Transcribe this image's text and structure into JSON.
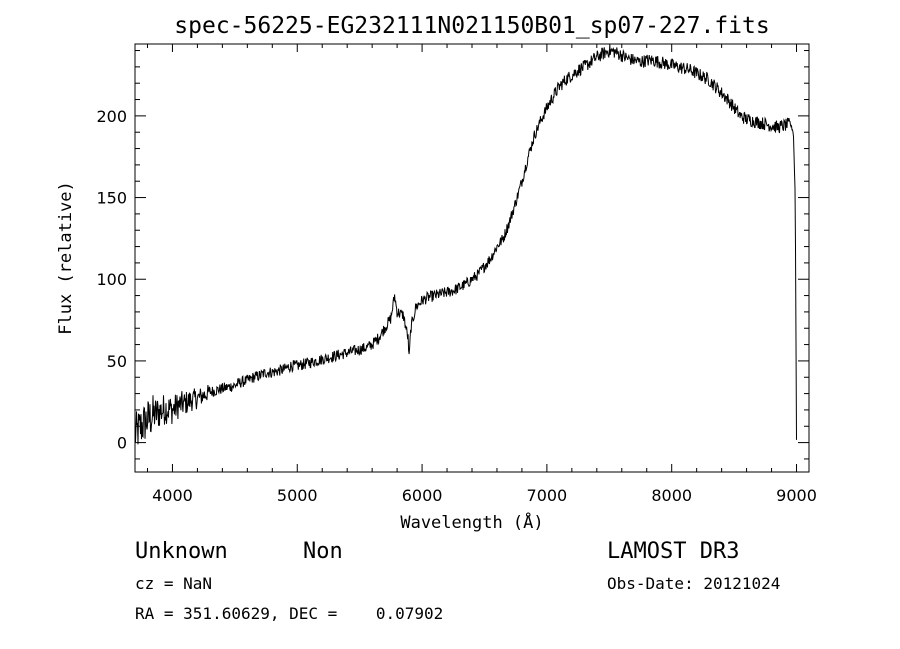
{
  "chart_data": {
    "type": "line",
    "title": "spec-56225-EG232111N021150B01_sp07-227.fits",
    "xlabel": "Wavelength (Å)",
    "ylabel": "Flux (relative)",
    "xlim": [
      3700,
      9100
    ],
    "ylim": [
      -18,
      244
    ],
    "x_ticks": [
      "4000",
      "5000",
      "6000",
      "7000",
      "8000",
      "9000"
    ],
    "x_tick_values": [
      4000,
      5000,
      6000,
      7000,
      8000,
      9000
    ],
    "y_ticks": [
      "0",
      "50",
      "100",
      "150",
      "200"
    ],
    "y_tick_values": [
      0,
      50,
      100,
      150,
      200
    ],
    "grid": false,
    "line_color": "#000000",
    "series": [
      {
        "x": [
          3700,
          3750,
          3800,
          3850,
          3900,
          3950,
          4000,
          4050,
          4100,
          4150,
          4200,
          4250,
          4300,
          4350,
          4400,
          4450,
          4500,
          4550,
          4600,
          4650,
          4700,
          4750,
          4800,
          4850,
          4900,
          4950,
          5000,
          5050,
          5100,
          5150,
          5200,
          5250,
          5300,
          5350,
          5400,
          5450,
          5500,
          5550,
          5600,
          5650,
          5700,
          5750,
          5780,
          5800,
          5850,
          5890,
          5895,
          5910,
          5950,
          6000,
          6050,
          6100,
          6150,
          6200,
          6250,
          6300,
          6350,
          6400,
          6450,
          6500,
          6550,
          6600,
          6650,
          6700,
          6750,
          6800,
          6850,
          6900,
          6950,
          7000,
          7050,
          7100,
          7150,
          7200,
          7250,
          7300,
          7350,
          7400,
          7450,
          7500,
          7550,
          7600,
          7650,
          7700,
          7750,
          7800,
          7850,
          7900,
          7950,
          8000,
          8050,
          8100,
          8150,
          8200,
          8250,
          8300,
          8350,
          8400,
          8450,
          8500,
          8550,
          8600,
          8650,
          8700,
          8750,
          8800,
          8850,
          8900,
          8950,
          8975,
          8990,
          9000
        ],
        "y": [
          5,
          10,
          14,
          17,
          19,
          21,
          20,
          23,
          24,
          26,
          27,
          29,
          31,
          32,
          33,
          34,
          35,
          37,
          38,
          40,
          41,
          43,
          43,
          44,
          45,
          47,
          47,
          48,
          49,
          50,
          51,
          52,
          53,
          54,
          55,
          56,
          57,
          58,
          60,
          64,
          70,
          76,
          90,
          80,
          78,
          63,
          50,
          70,
          83,
          87,
          89,
          90,
          91,
          92,
          93,
          95,
          97,
          100,
          103,
          108,
          113,
          120,
          125,
          135,
          147,
          160,
          175,
          188,
          197,
          205,
          212,
          218,
          222,
          225,
          228,
          230,
          233,
          236,
          238,
          240,
          239,
          237,
          235,
          234,
          233,
          234,
          234,
          233,
          232,
          231,
          230,
          229,
          228,
          226,
          224,
          222,
          218,
          214,
          210,
          205,
          200,
          198,
          197,
          196,
          195,
          194,
          193,
          194,
          195,
          190,
          150,
          2
        ]
      }
    ]
  },
  "info": {
    "object_class": "Unknown",
    "object_subclass": "Non",
    "survey": "LAMOST DR3",
    "cz": "cz = NaN",
    "obs_date": "Obs-Date: 20121024",
    "coords": "RA = 351.60629, DEC =    0.07902"
  }
}
